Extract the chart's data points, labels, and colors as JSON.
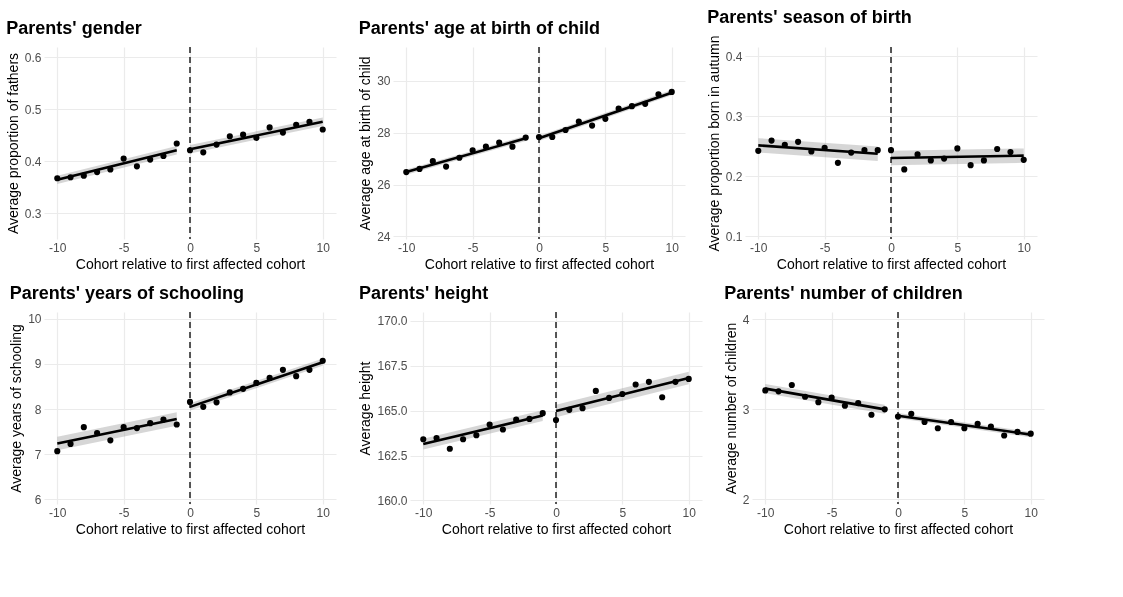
{
  "chart_data": [
    {
      "type": "scatter",
      "title": "Parents' gender",
      "xlabel": "Cohort relative to first affected cohort",
      "ylabel": "Average proportion of fathers",
      "xlim": [
        -11,
        11
      ],
      "xticks": [
        -10,
        -5,
        0,
        5,
        10
      ],
      "ylim": [
        0.25,
        0.62
      ],
      "yticks": [
        0.3,
        0.4,
        0.5,
        0.6
      ],
      "grid": true,
      "marker": "circle",
      "ref_lines": [
        {
          "axis": "x",
          "value": 0,
          "line_style": "dashed",
          "color": "#000000"
        }
      ],
      "series": [
        {
          "color": "#000000",
          "x": [
            -10,
            -9,
            -8,
            -7,
            -6,
            -5,
            -4,
            -3,
            -2,
            -1,
            0,
            1,
            2,
            3,
            4,
            5,
            6,
            7,
            8,
            9,
            10
          ],
          "values": [
            0.367,
            0.369,
            0.372,
            0.379,
            0.384,
            0.405,
            0.39,
            0.403,
            0.41,
            0.434,
            0.421,
            0.417,
            0.432,
            0.448,
            0.451,
            0.445,
            0.465,
            0.455,
            0.47,
            0.476,
            0.461
          ]
        },
        {
          "type": "line",
          "marker": "none",
          "line_style": "solid",
          "color": "#000000",
          "x": [
            -10,
            -1
          ],
          "values": [
            0.364,
            0.421
          ],
          "lower": [
            0.356,
            0.413
          ],
          "upper": [
            0.372,
            0.429
          ]
        },
        {
          "type": "line",
          "marker": "none",
          "line_style": "solid",
          "color": "#000000",
          "x": [
            0,
            10
          ],
          "values": [
            0.423,
            0.476
          ],
          "lower": [
            0.415,
            0.468
          ],
          "upper": [
            0.431,
            0.484
          ]
        }
      ]
    },
    {
      "type": "scatter",
      "title": "Parents' age at birth of child",
      "xlabel": "Cohort relative to first affected cohort",
      "ylabel": "Average age at birth of child",
      "xlim": [
        -11,
        11
      ],
      "xticks": [
        -10,
        -5,
        0,
        5,
        10
      ],
      "ylim": [
        23.9,
        31.3
      ],
      "yticks": [
        24,
        26,
        28,
        30
      ],
      "grid": true,
      "marker": "circle",
      "ref_lines": [
        {
          "axis": "x",
          "value": 0,
          "line_style": "dashed",
          "color": "#000000"
        }
      ],
      "series": [
        {
          "color": "#000000",
          "x": [
            -10,
            -9,
            -8,
            -7,
            -6,
            -5,
            -4,
            -3,
            -2,
            -1,
            0,
            1,
            2,
            3,
            4,
            5,
            6,
            7,
            8,
            9,
            10
          ],
          "values": [
            26.48,
            26.6,
            26.9,
            26.69,
            27.03,
            27.32,
            27.46,
            27.62,
            27.46,
            27.81,
            27.83,
            27.83,
            28.1,
            28.43,
            28.27,
            28.53,
            28.93,
            29.02,
            29.11,
            29.48,
            29.57
          ]
        },
        {
          "type": "line",
          "marker": "none",
          "line_style": "solid",
          "color": "#000000",
          "x": [
            -10,
            -1
          ],
          "values": [
            26.48,
            27.78
          ],
          "lower": [
            26.38,
            27.68
          ],
          "upper": [
            26.58,
            27.88
          ]
        },
        {
          "type": "line",
          "marker": "none",
          "line_style": "solid",
          "color": "#000000",
          "x": [
            0,
            10
          ],
          "values": [
            27.78,
            29.54
          ],
          "lower": [
            27.68,
            29.44
          ],
          "upper": [
            27.88,
            29.64
          ]
        }
      ]
    },
    {
      "type": "scatter",
      "title": "Parents' season of birth",
      "xlabel": "Cohort relative to first affected cohort",
      "ylabel": "Average proportion born in autumn",
      "xlim": [
        -11,
        11
      ],
      "xticks": [
        -10,
        -5,
        0,
        5,
        10
      ],
      "ylim": [
        0.095,
        0.415
      ],
      "yticks": [
        0.1,
        0.2,
        0.3,
        0.4
      ],
      "grid": true,
      "marker": "circle",
      "ref_lines": [
        {
          "axis": "x",
          "value": 0,
          "line_style": "dashed",
          "color": "#000000"
        }
      ],
      "series": [
        {
          "color": "#000000",
          "x": [
            -10,
            -9,
            -8,
            -7,
            -6,
            -5,
            -4,
            -3,
            -2,
            -1,
            0,
            1,
            2,
            3,
            4,
            5,
            6,
            7,
            8,
            9,
            10
          ],
          "values": [
            0.242,
            0.259,
            0.252,
            0.257,
            0.241,
            0.247,
            0.222,
            0.239,
            0.243,
            0.243,
            0.243,
            0.211,
            0.236,
            0.226,
            0.229,
            0.246,
            0.218,
            0.226,
            0.245,
            0.24,
            0.227
          ]
        },
        {
          "type": "line",
          "marker": "none",
          "line_style": "solid",
          "color": "#000000",
          "x": [
            -10,
            -1
          ],
          "values": [
            0.251,
            0.237
          ],
          "lower": [
            0.239,
            0.225
          ],
          "upper": [
            0.263,
            0.249
          ]
        },
        {
          "type": "line",
          "marker": "none",
          "line_style": "solid",
          "color": "#000000",
          "x": [
            0,
            10
          ],
          "values": [
            0.23,
            0.234
          ],
          "lower": [
            0.218,
            0.222
          ],
          "upper": [
            0.242,
            0.246
          ]
        }
      ]
    },
    {
      "type": "scatter",
      "title": "Parents' years of schooling",
      "xlabel": "Cohort relative to first affected cohort",
      "ylabel": "Average years of schooling",
      "xlim": [
        -11,
        11
      ],
      "xticks": [
        -10,
        -5,
        0,
        5,
        10
      ],
      "ylim": [
        5.9,
        10.15
      ],
      "yticks": [
        6,
        7,
        8,
        9,
        10
      ],
      "grid": true,
      "marker": "circle",
      "ref_lines": [
        {
          "axis": "x",
          "value": 0,
          "line_style": "dashed",
          "color": "#000000"
        }
      ],
      "series": [
        {
          "color": "#000000",
          "x": [
            -10,
            -9,
            -8,
            -7,
            -6,
            -5,
            -4,
            -3,
            -2,
            -1,
            0,
            1,
            2,
            3,
            4,
            5,
            6,
            7,
            8,
            9,
            10
          ],
          "values": [
            7.07,
            7.23,
            7.6,
            7.47,
            7.31,
            7.6,
            7.58,
            7.69,
            7.77,
            7.66,
            8.16,
            8.05,
            8.15,
            8.37,
            8.45,
            8.58,
            8.69,
            8.87,
            8.73,
            8.87,
            9.07
          ]
        },
        {
          "type": "line",
          "marker": "none",
          "line_style": "solid",
          "color": "#000000",
          "x": [
            -10,
            -1
          ],
          "values": [
            7.24,
            7.78
          ],
          "lower": [
            7.09,
            7.63
          ],
          "upper": [
            7.39,
            7.93
          ]
        },
        {
          "type": "line",
          "marker": "none",
          "line_style": "solid",
          "color": "#000000",
          "x": [
            0,
            10
          ],
          "values": [
            8.05,
            9.04
          ],
          "lower": [
            7.97,
            8.96
          ],
          "upper": [
            8.13,
            9.12
          ]
        }
      ]
    },
    {
      "type": "scatter",
      "title": "Parents' height",
      "xlabel": "Cohort relative to first affected cohort",
      "ylabel": "Average height",
      "xlim": [
        -11,
        11
      ],
      "xticks": [
        -10,
        -5,
        0,
        5,
        10
      ],
      "ylim": [
        159.8,
        170.5
      ],
      "yticks": [
        {
          "value": 160,
          "label": "160.0"
        },
        162.5,
        {
          "value": 165,
          "label": "165.0"
        },
        167.5,
        {
          "value": 170,
          "label": "170.0"
        }
      ],
      "grid": true,
      "marker": "circle",
      "ref_lines": [
        {
          "axis": "x",
          "value": 0,
          "line_style": "dashed",
          "color": "#000000"
        }
      ],
      "series": [
        {
          "color": "#000000",
          "x": [
            -10,
            -9,
            -8,
            -7,
            -6,
            -5,
            -4,
            -3,
            -2,
            -1,
            0,
            1,
            2,
            3,
            4,
            5,
            6,
            7,
            8,
            9,
            10
          ],
          "values": [
            163.41,
            163.48,
            162.88,
            163.41,
            163.63,
            164.23,
            163.95,
            164.5,
            164.54,
            164.86,
            164.48,
            165.05,
            165.14,
            166.1,
            165.71,
            165.93,
            166.46,
            166.61,
            165.75,
            166.61,
            166.77
          ]
        },
        {
          "type": "line",
          "marker": "none",
          "line_style": "solid",
          "color": "#000000",
          "x": [
            -10,
            -1
          ],
          "values": [
            163.14,
            164.73
          ],
          "lower": [
            162.84,
            164.43
          ],
          "upper": [
            163.44,
            165.03
          ]
        },
        {
          "type": "line",
          "marker": "none",
          "line_style": "solid",
          "color": "#000000",
          "x": [
            0,
            10
          ],
          "values": [
            164.98,
            166.82
          ],
          "lower": [
            164.63,
            166.47
          ],
          "upper": [
            165.33,
            167.17
          ]
        }
      ]
    },
    {
      "type": "scatter",
      "title": "Parents' number of children",
      "xlabel": "Cohort relative to first affected cohort",
      "ylabel": "Average number of children",
      "xlim": [
        -11,
        11
      ],
      "xticks": [
        -10,
        -5,
        0,
        5,
        10
      ],
      "ylim": [
        1.95,
        4.08
      ],
      "yticks": [
        2,
        3,
        4
      ],
      "grid": true,
      "marker": "circle",
      "ref_lines": [
        {
          "axis": "x",
          "value": 0,
          "line_style": "dashed",
          "color": "#000000"
        }
      ],
      "series": [
        {
          "color": "#000000",
          "x": [
            -10,
            -9,
            -8,
            -7,
            -6,
            -5,
            -4,
            -3,
            -2,
            -1,
            0,
            1,
            2,
            3,
            4,
            5,
            6,
            7,
            8,
            9,
            10
          ],
          "values": [
            3.21,
            3.2,
            3.27,
            3.14,
            3.08,
            3.13,
            3.04,
            3.07,
            2.94,
            3.0,
            2.92,
            2.95,
            2.86,
            2.79,
            2.86,
            2.79,
            2.84,
            2.81,
            2.71,
            2.75,
            2.73
          ]
        },
        {
          "type": "line",
          "marker": "none",
          "line_style": "solid",
          "color": "#000000",
          "x": [
            -10,
            -1
          ],
          "values": [
            3.23,
            3.0
          ],
          "lower": [
            3.18,
            2.95
          ],
          "upper": [
            3.28,
            3.05
          ]
        },
        {
          "type": "line",
          "marker": "none",
          "line_style": "solid",
          "color": "#000000",
          "x": [
            0,
            10
          ],
          "values": [
            2.93,
            2.72
          ],
          "lower": [
            2.9,
            2.69
          ],
          "upper": [
            2.96,
            2.75
          ]
        }
      ]
    }
  ]
}
